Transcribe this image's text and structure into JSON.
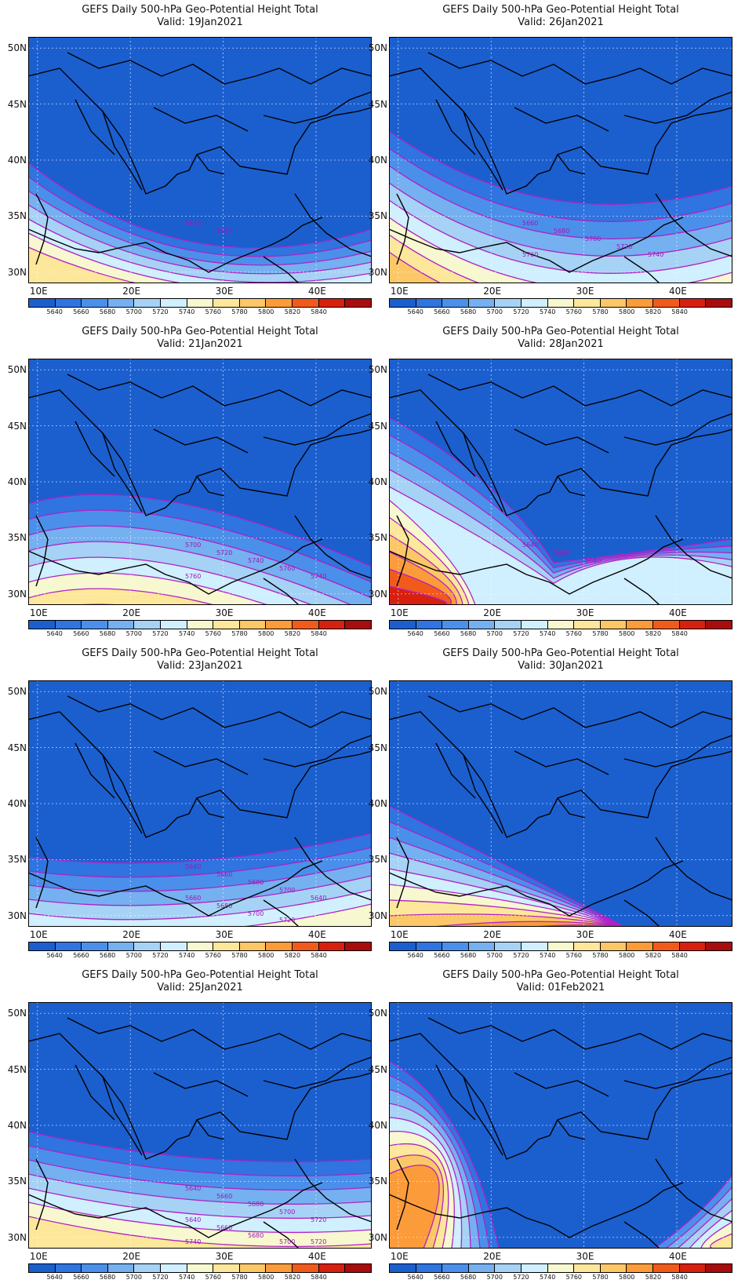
{
  "lat_labels": [
    "50N",
    "45N",
    "40N",
    "35N",
    "30N"
  ],
  "lon_labels": [
    "10E",
    "20E",
    "30E",
    "40E"
  ],
  "colorbar": {
    "levels": [
      "5640",
      "5660",
      "5680",
      "5700",
      "5720",
      "5740",
      "5760",
      "5780",
      "5800",
      "5820",
      "5840"
    ],
    "colors": [
      "#1b5fcf",
      "#2f74e0",
      "#4a90ea",
      "#75b0f0",
      "#a6d2f5",
      "#d0efff",
      "#f7f7d0",
      "#fde79a",
      "#fcc767",
      "#fb9b3a",
      "#f25a1c",
      "#d8200f",
      "#a80c0c"
    ]
  },
  "panels": [
    {
      "title": "GEFS Daily 500-hPa Geo-Potential Height Total",
      "valid": "Valid: 19Jan2021",
      "contour_labels": [
        "5640",
        "5660"
      ]
    },
    {
      "title": "GEFS Daily 500-hPa Geo-Potential Height Total",
      "valid": "Valid: 26Jan2021",
      "contour_labels": [
        "5660",
        "5680",
        "5700",
        "5720",
        "5740",
        "5760"
      ]
    },
    {
      "title": "GEFS Daily 500-hPa Geo-Potential Height Total",
      "valid": "Valid: 21Jan2021",
      "contour_labels": [
        "5700",
        "5720",
        "5740",
        "5760",
        "5740",
        "5760"
      ]
    },
    {
      "title": "GEFS Daily 500-hPa Geo-Potential Height Total",
      "valid": "Valid: 28Jan2021",
      "contour_labels": [
        "5640",
        "5660",
        "5680"
      ]
    },
    {
      "title": "GEFS Daily 500-hPa Geo-Potential Height Total",
      "valid": "Valid: 23Jan2021",
      "contour_labels": [
        "5640",
        "5660",
        "5680",
        "5700",
        "5640",
        "5660",
        "5680",
        "5700",
        "5720"
      ]
    },
    {
      "title": "GEFS Daily 500-hPa Geo-Potential Height Total",
      "valid": "Valid: 30Jan2021",
      "contour_labels": []
    },
    {
      "title": "GEFS Daily 500-hPa Geo-Potential Height Total",
      "valid": "Valid: 25Jan2021",
      "contour_labels": [
        "5640",
        "5660",
        "5680",
        "5700",
        "5720",
        "5640",
        "5660",
        "5680",
        "5700",
        "5720",
        "5740"
      ]
    },
    {
      "title": "GEFS Daily 500-hPa Geo-Potential Height Total",
      "valid": "Valid: 01Feb2021",
      "contour_labels": []
    }
  ]
}
